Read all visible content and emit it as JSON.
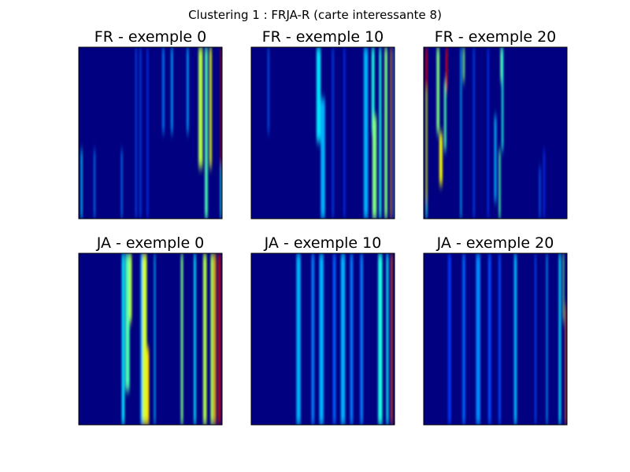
{
  "chart_data": {
    "type": "heatmap",
    "title": "Clustering 1 : FRJA-R (carte interessante 8)",
    "colormap": "jet",
    "value_range": [
      0,
      1
    ],
    "grid": false,
    "axes_ticks": "none",
    "layout": {
      "rows": 2,
      "cols": 3
    },
    "panels": [
      {
        "title": "FR - exemple 0",
        "base": 0.0,
        "columns": [
          {
            "x": 0.02,
            "w": 0.01,
            "v": 0.35,
            "y0": 0.6,
            "y1": 1.0
          },
          {
            "x": 0.11,
            "w": 0.01,
            "v": 0.25,
            "y0": 0.6,
            "y1": 1.0
          },
          {
            "x": 0.3,
            "w": 0.01,
            "v": 0.25,
            "y0": 0.6,
            "y1": 1.0
          },
          {
            "x": 0.4,
            "w": 0.01,
            "v": 0.2,
            "y0": 0.0,
            "y1": 1.0
          },
          {
            "x": 0.43,
            "w": 0.01,
            "v": 0.2,
            "y0": 0.0,
            "y1": 1.0
          },
          {
            "x": 0.48,
            "w": 0.01,
            "v": 0.18,
            "y0": 0.0,
            "y1": 1.0
          },
          {
            "x": 0.59,
            "w": 0.014,
            "v": 0.25,
            "y0": 0.0,
            "y1": 0.5
          },
          {
            "x": 0.65,
            "w": 0.014,
            "v": 0.28,
            "y0": 0.0,
            "y1": 0.5
          },
          {
            "x": 0.76,
            "w": 0.014,
            "v": 0.28,
            "y0": 0.0,
            "y1": 0.5
          },
          {
            "x": 0.85,
            "w": 0.03,
            "v": 0.55,
            "y0": 0.0,
            "y1": 0.7
          },
          {
            "x": 0.89,
            "w": 0.02,
            "v": 0.45,
            "y0": 0.0,
            "y1": 1.0
          },
          {
            "x": 0.92,
            "w": 0.015,
            "v": 0.6,
            "y0": 0.0,
            "y1": 0.7
          },
          {
            "x": 0.99,
            "w": 0.006,
            "v": 0.95,
            "y0": 0.0,
            "y1": 0.7
          },
          {
            "x": 0.99,
            "w": 0.006,
            "v": 0.4,
            "y0": 0.7,
            "y1": 1.0
          }
        ]
      },
      {
        "title": "FR - exemple 10",
        "base": 0.0,
        "columns": [
          {
            "x": 0.12,
            "w": 0.01,
            "v": 0.22,
            "y0": 0.0,
            "y1": 0.5
          },
          {
            "x": 0.47,
            "w": 0.03,
            "v": 0.35,
            "y0": 0.0,
            "y1": 0.55
          },
          {
            "x": 0.5,
            "w": 0.03,
            "v": 0.3,
            "y0": 0.3,
            "y1": 1.0
          },
          {
            "x": 0.57,
            "w": 0.01,
            "v": 0.2,
            "y0": 0.0,
            "y1": 1.0
          },
          {
            "x": 0.65,
            "w": 0.01,
            "v": 0.18,
            "y0": 0.0,
            "y1": 1.0
          },
          {
            "x": 0.8,
            "w": 0.03,
            "v": 0.3,
            "y0": 0.0,
            "y1": 1.0
          },
          {
            "x": 0.85,
            "w": 0.02,
            "v": 0.4,
            "y0": 0.0,
            "y1": 0.5
          },
          {
            "x": 0.86,
            "w": 0.03,
            "v": 0.5,
            "y0": 0.4,
            "y1": 1.0
          },
          {
            "x": 0.9,
            "w": 0.015,
            "v": 0.4,
            "y0": 0.0,
            "y1": 1.0
          },
          {
            "x": 0.94,
            "w": 0.02,
            "v": 0.5,
            "y0": 0.0,
            "y1": 1.0
          },
          {
            "x": 0.975,
            "w": 0.008,
            "v": 0.72,
            "y0": 0.0,
            "y1": 1.0
          },
          {
            "x": 0.995,
            "w": 0.004,
            "v": 0.3,
            "y0": 0.0,
            "y1": 1.0
          }
        ]
      },
      {
        "title": "FR - exemple 20",
        "base": 0.0,
        "columns": [
          {
            "x": 0.02,
            "w": 0.012,
            "v": 0.9,
            "y0": 0.0,
            "y1": 0.25
          },
          {
            "x": 0.02,
            "w": 0.01,
            "v": 0.6,
            "y0": 0.25,
            "y1": 0.9
          },
          {
            "x": 0.02,
            "w": 0.01,
            "v": 0.4,
            "y0": 0.9,
            "y1": 1.0
          },
          {
            "x": 0.1,
            "w": 0.02,
            "v": 0.5,
            "y0": 0.0,
            "y1": 0.5
          },
          {
            "x": 0.12,
            "w": 0.022,
            "v": 0.62,
            "y0": 0.5,
            "y1": 0.8
          },
          {
            "x": 0.15,
            "w": 0.015,
            "v": 0.45,
            "y0": 0.2,
            "y1": 0.6
          },
          {
            "x": 0.16,
            "w": 0.012,
            "v": 0.88,
            "y0": 0.0,
            "y1": 0.25
          },
          {
            "x": 0.26,
            "w": 0.01,
            "v": 0.3,
            "y0": 0.0,
            "y1": 1.0
          },
          {
            "x": 0.28,
            "w": 0.012,
            "v": 0.5,
            "y0": 0.0,
            "y1": 0.2
          },
          {
            "x": 0.35,
            "w": 0.01,
            "v": 0.2,
            "y0": 0.0,
            "y1": 1.0
          },
          {
            "x": 0.45,
            "w": 0.01,
            "v": 0.18,
            "y0": 0.0,
            "y1": 1.0
          },
          {
            "x": 0.5,
            "w": 0.015,
            "v": 0.3,
            "y0": 0.4,
            "y1": 0.9
          },
          {
            "x": 0.53,
            "w": 0.012,
            "v": 0.45,
            "y0": 0.6,
            "y1": 1.0
          },
          {
            "x": 0.54,
            "w": 0.01,
            "v": 0.48,
            "y0": 0.0,
            "y1": 0.2
          },
          {
            "x": 0.55,
            "w": 0.012,
            "v": 0.4,
            "y0": 0.0,
            "y1": 0.6
          },
          {
            "x": 0.81,
            "w": 0.01,
            "v": 0.22,
            "y0": 0.7,
            "y1": 1.0
          },
          {
            "x": 0.84,
            "w": 0.01,
            "v": 0.18,
            "y0": 0.6,
            "y1": 1.0
          }
        ]
      },
      {
        "title": "JA - exemple 0",
        "base": 0.0,
        "columns": [
          {
            "x": 0.31,
            "w": 0.02,
            "v": 0.35,
            "y0": 0.0,
            "y1": 1.0
          },
          {
            "x": 0.34,
            "w": 0.03,
            "v": 0.45,
            "y0": 0.0,
            "y1": 0.8
          },
          {
            "x": 0.36,
            "w": 0.02,
            "v": 0.55,
            "y0": 0.0,
            "y1": 0.4
          },
          {
            "x": 0.44,
            "w": 0.02,
            "v": 0.3,
            "y0": 0.0,
            "y1": 1.0
          },
          {
            "x": 0.46,
            "w": 0.03,
            "v": 0.58,
            "y0": 0.0,
            "y1": 1.0
          },
          {
            "x": 0.48,
            "w": 0.02,
            "v": 0.65,
            "y0": 0.55,
            "y1": 1.0
          },
          {
            "x": 0.53,
            "w": 0.01,
            "v": 0.3,
            "y0": 0.0,
            "y1": 1.0
          },
          {
            "x": 0.72,
            "w": 0.015,
            "v": 0.5,
            "y0": 0.0,
            "y1": 1.0
          },
          {
            "x": 0.81,
            "w": 0.015,
            "v": 0.35,
            "y0": 0.0,
            "y1": 1.0
          },
          {
            "x": 0.88,
            "w": 0.025,
            "v": 0.55,
            "y0": 0.0,
            "y1": 1.0
          },
          {
            "x": 0.93,
            "w": 0.02,
            "v": 0.55,
            "y0": 0.0,
            "y1": 1.0
          },
          {
            "x": 0.95,
            "w": 0.015,
            "v": 0.72,
            "y0": 0.0,
            "y1": 1.0
          },
          {
            "x": 0.98,
            "w": 0.015,
            "v": 0.9,
            "y0": 0.0,
            "y1": 1.0
          }
        ]
      },
      {
        "title": "JA - exemple 10",
        "base": 0.0,
        "columns": [
          {
            "x": 0.33,
            "w": 0.03,
            "v": 0.3,
            "y0": 0.0,
            "y1": 1.0
          },
          {
            "x": 0.43,
            "w": 0.02,
            "v": 0.25,
            "y0": 0.0,
            "y1": 1.0
          },
          {
            "x": 0.49,
            "w": 0.03,
            "v": 0.3,
            "y0": 0.0,
            "y1": 1.0
          },
          {
            "x": 0.58,
            "w": 0.02,
            "v": 0.22,
            "y0": 0.0,
            "y1": 1.0
          },
          {
            "x": 0.64,
            "w": 0.03,
            "v": 0.3,
            "y0": 0.0,
            "y1": 1.0
          },
          {
            "x": 0.7,
            "w": 0.02,
            "v": 0.25,
            "y0": 0.0,
            "y1": 1.0
          },
          {
            "x": 0.77,
            "w": 0.02,
            "v": 0.25,
            "y0": 0.0,
            "y1": 1.0
          },
          {
            "x": 0.9,
            "w": 0.03,
            "v": 0.4,
            "y0": 0.0,
            "y1": 1.0
          },
          {
            "x": 0.95,
            "w": 0.015,
            "v": 0.35,
            "y0": 0.0,
            "y1": 1.0
          },
          {
            "x": 0.98,
            "w": 0.01,
            "v": 0.8,
            "y0": 0.0,
            "y1": 1.0
          }
        ]
      },
      {
        "title": "JA - exemple 20",
        "base": 0.0,
        "columns": [
          {
            "x": 0.18,
            "w": 0.02,
            "v": 0.18,
            "y0": 0.0,
            "y1": 1.0
          },
          {
            "x": 0.28,
            "w": 0.02,
            "v": 0.22,
            "y0": 0.0,
            "y1": 1.0
          },
          {
            "x": 0.38,
            "w": 0.03,
            "v": 0.26,
            "y0": 0.0,
            "y1": 1.0
          },
          {
            "x": 0.46,
            "w": 0.02,
            "v": 0.2,
            "y0": 0.0,
            "y1": 1.0
          },
          {
            "x": 0.53,
            "w": 0.015,
            "v": 0.2,
            "y0": 0.0,
            "y1": 1.0
          },
          {
            "x": 0.64,
            "w": 0.02,
            "v": 0.3,
            "y0": 0.0,
            "y1": 1.0
          },
          {
            "x": 0.78,
            "w": 0.01,
            "v": 0.2,
            "y0": 0.0,
            "y1": 1.0
          },
          {
            "x": 0.86,
            "w": 0.01,
            "v": 0.28,
            "y0": 0.0,
            "y1": 1.0
          },
          {
            "x": 0.95,
            "w": 0.015,
            "v": 0.35,
            "y0": 0.0,
            "y1": 1.0
          },
          {
            "x": 0.975,
            "w": 0.008,
            "v": 0.5,
            "y0": 0.0,
            "y1": 0.4
          },
          {
            "x": 0.99,
            "w": 0.008,
            "v": 0.78,
            "y0": 0.3,
            "y1": 1.0
          }
        ]
      }
    ]
  }
}
